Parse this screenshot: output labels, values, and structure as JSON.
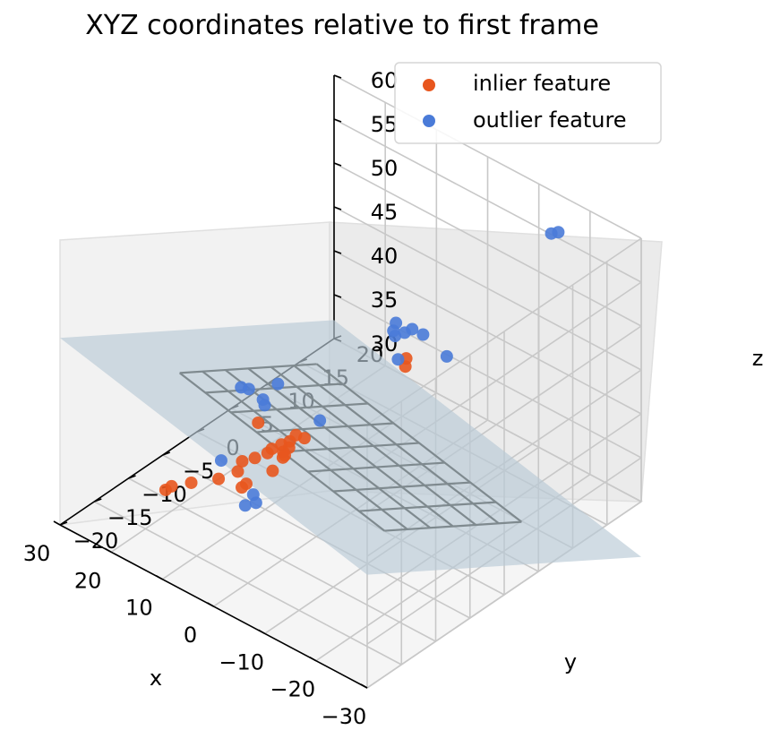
{
  "chart_data": {
    "type": "scatter",
    "projection": "3d",
    "title": "XYZ coordinates relative to first frame",
    "xlabel": "x",
    "ylabel": "y",
    "zlabel": "z",
    "xlim": [
      -30,
      30
    ],
    "ylim": [
      -20,
      20
    ],
    "zlim": [
      30,
      60
    ],
    "x_ticks": [
      -30,
      -20,
      -10,
      0,
      10,
      20,
      30
    ],
    "x_tick_labels": [
      "−30",
      "−20",
      "−10",
      "0",
      "10",
      "20",
      "30"
    ],
    "y_ticks": [
      -20,
      -15,
      -10,
      -5,
      0,
      5,
      10,
      15,
      20
    ],
    "y_tick_labels": [
      "−20",
      "−15",
      "−10",
      "−5",
      "0",
      "5",
      "10",
      "15",
      "20"
    ],
    "z_ticks": [
      30,
      35,
      40,
      45,
      50,
      55,
      60
    ],
    "z_tick_labels": [
      "30",
      "35",
      "40",
      "45",
      "50",
      "55",
      "60"
    ],
    "grid": true,
    "legend": "top-right",
    "colors": {
      "inlier": "#e8561e",
      "outlier": "#4a7bd8",
      "plane": "#b9cad6",
      "mesh": "#7f8a8f",
      "pane": "#f2f2f2",
      "gridline": "#c8c8c8"
    },
    "plane": {
      "description_free": true,
      "z_at_center": 37.5,
      "dz_dx": 0.14,
      "dz_dy": -0.48
    },
    "mesh": {
      "x_range": [
        -20,
        20
      ],
      "y_range": [
        -10,
        10
      ],
      "divisions_x": 8,
      "divisions_y": 6
    },
    "series": [
      {
        "name": "inlier feature",
        "color": "#e8561e",
        "points": [
          [
            -4,
            5,
            45.3
          ],
          [
            -3.5,
            5.5,
            45.8
          ],
          [
            5,
            -3,
            38.6
          ],
          [
            6,
            -3.5,
            38.9
          ],
          [
            6.8,
            -3.8,
            38.1
          ],
          [
            7.5,
            -4.5,
            37.9
          ],
          [
            6,
            -4.5,
            38.0
          ],
          [
            7.8,
            -4,
            36.7
          ],
          [
            8.7,
            -5,
            37.3
          ],
          [
            8.2,
            -6,
            37.5
          ],
          [
            5.5,
            -5.5,
            37.8
          ],
          [
            4.8,
            -6.3,
            38.2
          ],
          [
            8.8,
            -7.4,
            37.5
          ],
          [
            9.8,
            -8.5,
            37.4
          ],
          [
            9.2,
            -9.6,
            37.0
          ],
          [
            7.6,
            -10.2,
            36.0
          ],
          [
            7,
            -10,
            36.5
          ],
          [
            10.4,
            -11.5,
            36.8
          ],
          [
            13.2,
            -13.4,
            36.5
          ],
          [
            14.5,
            -15.3,
            36.7
          ],
          [
            15,
            -15.8,
            36.4
          ],
          [
            10.3,
            -5.8,
            40.2
          ],
          [
            5.2,
            -7.5,
            37.2
          ]
        ]
      },
      {
        "name": "outlier feature",
        "color": "#4a7bd8",
        "points": [
          [
            -22.9,
            13.2,
            62.1
          ],
          [
            -22.2,
            12.7,
            62.0
          ],
          [
            -6.2,
            9.4,
            44.8
          ],
          [
            -1.9,
            5.5,
            45.2
          ],
          [
            -0.5,
            10.2,
            45.1
          ],
          [
            2.7,
            11,
            44.3
          ],
          [
            3.1,
            10.2,
            44.2
          ],
          [
            3.9,
            9.4,
            44.0
          ],
          [
            4.5,
            9.6,
            44.3
          ],
          [
            5.2,
            10.5,
            44.5
          ],
          [
            3.6,
            -1.8,
            40.4
          ],
          [
            11.7,
            -3.8,
            40.7
          ],
          [
            13.4,
            -0.6,
            40.9
          ],
          [
            15.2,
            -3.5,
            41.3
          ],
          [
            15.9,
            -4.1,
            41.6
          ],
          [
            11.1,
            -10.6,
            38.2
          ],
          [
            4.7,
            -10.3,
            35.2
          ],
          [
            5.6,
            -11.2,
            35.1
          ],
          [
            11.1,
            -4.5,
            41.9
          ],
          [
            5.9,
            -9.8,
            35.5
          ]
        ]
      }
    ]
  }
}
